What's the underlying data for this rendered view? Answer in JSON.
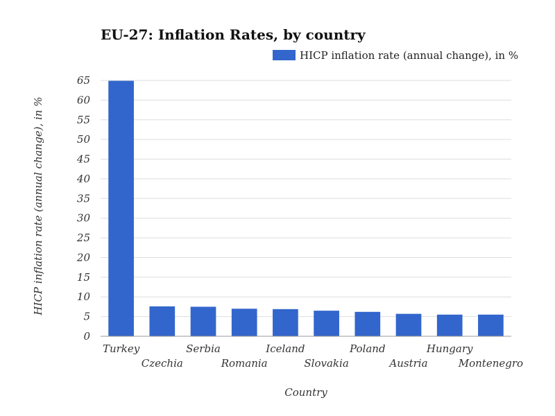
{
  "chart_data": {
    "type": "bar",
    "title": "EU-27: Inflation Rates, by country",
    "xlabel": "Country",
    "ylabel": "HICP inflation rate (annual change), in %",
    "categories": [
      "Turkey",
      "Czechia",
      "Serbia",
      "Romania",
      "Iceland",
      "Slovakia",
      "Poland",
      "Austria",
      "Hungary",
      "Montenegro"
    ],
    "series": [
      {
        "name": "HICP inflation rate (annual change), in %",
        "values": [
          64.9,
          7.6,
          7.5,
          7.0,
          6.9,
          6.5,
          6.2,
          5.7,
          5.5,
          5.5
        ]
      }
    ],
    "ylim": [
      0,
      65
    ],
    "yticks": [
      0,
      5,
      10,
      15,
      20,
      25,
      30,
      35,
      40,
      45,
      50,
      55,
      60,
      65
    ],
    "color": "#3366cc",
    "grid": true,
    "legend_position": "top-right"
  }
}
